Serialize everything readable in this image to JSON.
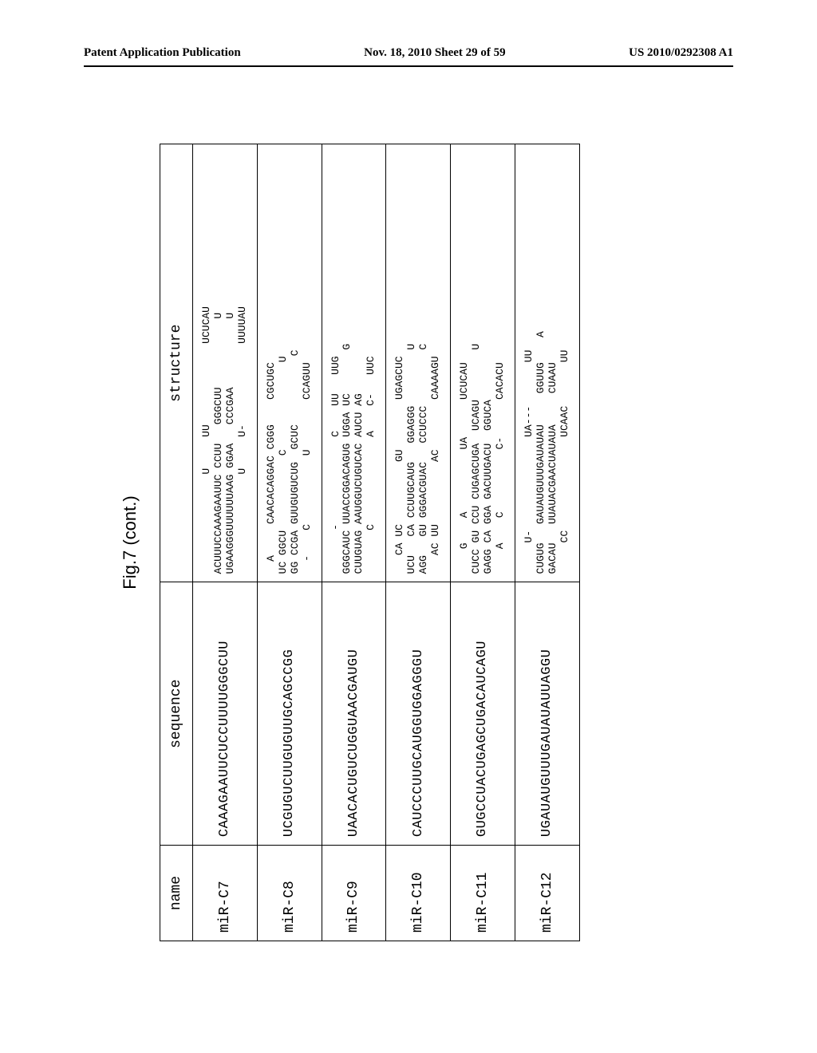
{
  "header": {
    "left": "Patent Application Publication",
    "center": "Nov. 18, 2010  Sheet 29 of 59",
    "right": "US 2010/0292308 A1"
  },
  "figure": {
    "title": "Fig.7 (cont.)",
    "columns": [
      "name",
      "sequence",
      "structure"
    ],
    "rows": [
      {
        "name": "miR-C7",
        "sequence": "CAAAGAAUUCUCCUUUUGGGCUU",
        "structure": "                U     UU             UCUCAU\nACUUUCCAAAGAAUUC CCUU   GGGCUU           U\nUGAAGGGUUUUUUAAG GGAA   CCCGAA           U\n                U     U-             UUUUAU"
      },
      {
        "name": "miR-C8",
        "sequence": "UCGUGUCUUGUGUUGCAGCCGG",
        "structure": "  A     CAACACAGGAC CGGG    CGCUGC\nUC GGCU            C              U\nGG CCGA GUUGUGUCUG  GCUC           C\n  -    C           U        CCAGUU"
      },
      {
        "name": "miR-C9",
        "sequence": "UAACACUGUCUGGUAACGAUGU",
        "structure": "       -              C    UU   UUG\nGGGCAUC UUACCGGACAGUG UGGA UC       G\nCUUGUAG AAUGGUCUGUCAC AUCU AG       \n       C              A    C-   UUC"
      },
      {
        "name": "miR-C10",
        "sequence": "CAUCCCUUGCAUGGUGGAGGGU",
        "structure": "   CA UC          GU        UGAGCUC\nUCU   CA CCUUGCAUG   GGAGGG         U\nAGG   GU GGGACGUAC   CCUCCC         C\n   AC UU          AC        CAAAAGU"
      },
      {
        "name": "miR-C11",
        "sequence": "GUGCCUACUGAGCUGACAUCAGU",
        "structure": "    G    A          UA      UCUCAU\nCUCC GU CCU CUGAGCUGA  UCAGU        U\nGAGG CA GGA GACUUGACU  GGUCA        \n    A    C          C-      CACACU"
      },
      {
        "name": "miR-C12",
        "sequence": "UGAUAUGUUUGAUAUAUUAGGU",
        "structure": "     U-               UA---       UU\nCUGUG   GAUAUGUUUGAUAUAU     GGUUG    A\nGACAU   UUAUACGAACUAUAUA     CUAAU    \n     CC               UCAAC       UU"
      }
    ]
  }
}
